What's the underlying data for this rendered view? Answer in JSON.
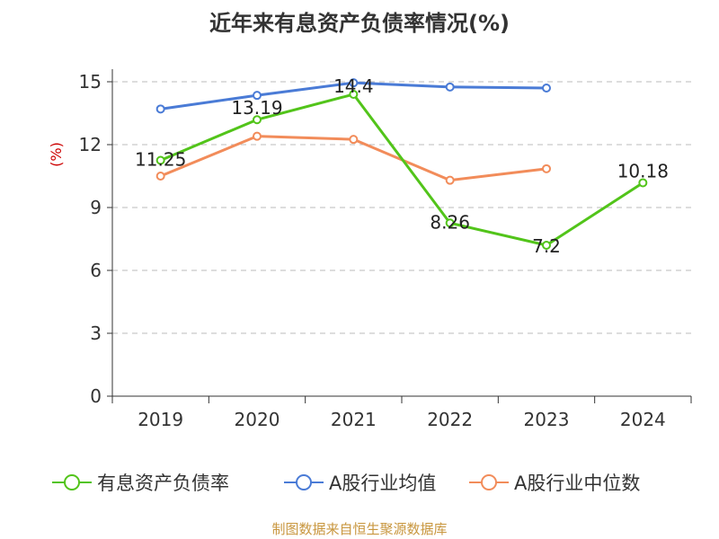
{
  "title": "近年来有息资产负债率情况(%)",
  "source": "制图数据来自恒生聚源数据库",
  "chart_data": {
    "type": "line",
    "title": "近年来有息资产负债率情况(%)",
    "ylabel": "(%)",
    "categories": [
      "2019",
      "2020",
      "2021",
      "2022",
      "2023",
      "2024"
    ],
    "ylim": [
      0,
      15
    ],
    "yticks": [
      0,
      3,
      6,
      9,
      12,
      15
    ],
    "grid": true,
    "legend_position": "bottom",
    "series": [
      {
        "name": "有息资产负债率",
        "color": "#52c41a",
        "values": [
          11.25,
          13.19,
          14.4,
          8.26,
          7.2,
          10.18
        ],
        "labels": [
          "11.25",
          "13.19",
          "14.4",
          "8.26",
          "7.2",
          "10.18"
        ]
      },
      {
        "name": "A股行业均值",
        "color": "#4a7bd6",
        "values": [
          13.7,
          14.35,
          14.95,
          14.75,
          14.7,
          null
        ]
      },
      {
        "name": "A股行业中位数",
        "color": "#f28c5a",
        "values": [
          10.5,
          12.4,
          12.25,
          10.3,
          10.85,
          null
        ]
      }
    ]
  }
}
